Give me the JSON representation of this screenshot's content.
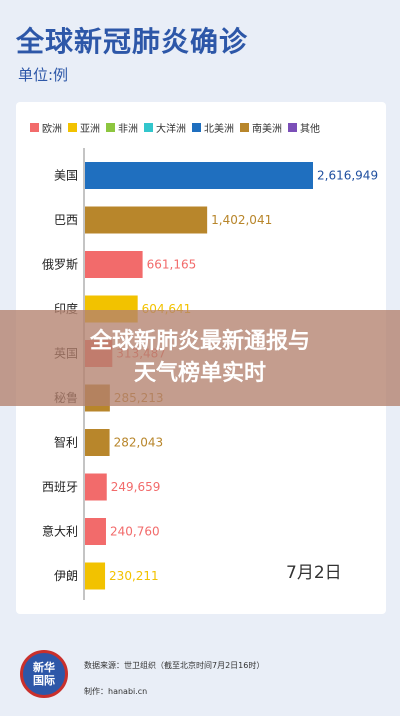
{
  "header": {
    "title": "全球新冠肺炎确诊",
    "unit": "单位:例"
  },
  "legend": [
    {
      "name": "欧洲",
      "color": "#f26b6b"
    },
    {
      "name": "亚洲",
      "color": "#f2c200"
    },
    {
      "name": "非洲",
      "color": "#8dc63f"
    },
    {
      "name": "大洋洲",
      "color": "#33c6cc"
    },
    {
      "name": "北美洲",
      "color": "#1f6fbf"
    },
    {
      "name": "南美洲",
      "color": "#b8862b"
    },
    {
      "name": "其他",
      "color": "#7b4fb8"
    }
  ],
  "chart_data": {
    "type": "bar",
    "orientation": "horizontal",
    "categories": [
      "美国",
      "巴西",
      "俄罗斯",
      "印度",
      "英国",
      "秘鲁",
      "智利",
      "西班牙",
      "意大利",
      "伊朗"
    ],
    "values": [
      2616949,
      1402041,
      661165,
      604641,
      313487,
      285213,
      282043,
      249659,
      240760,
      230211
    ],
    "value_labels": [
      "2,616,949",
      "1,402,041",
      "661,165",
      "604,641",
      "313,487",
      "285,213",
      "282,043",
      "249,659",
      "240,760",
      "230,211"
    ],
    "regions": [
      "北美洲",
      "南美洲",
      "欧洲",
      "亚洲",
      "欧洲",
      "南美洲",
      "南美洲",
      "欧洲",
      "欧洲",
      "亚洲"
    ],
    "annotation": "7月2日"
  },
  "overlay": {
    "line1": "全球新肺炎最新通报与",
    "line2": "天气榜单实时"
  },
  "footer": {
    "logo_line1": "新华",
    "logo_line2": "国际",
    "source": "数据来源：世卫组织（截至北京时间7月2日16时）",
    "maker": "制作：hanabi.cn"
  }
}
